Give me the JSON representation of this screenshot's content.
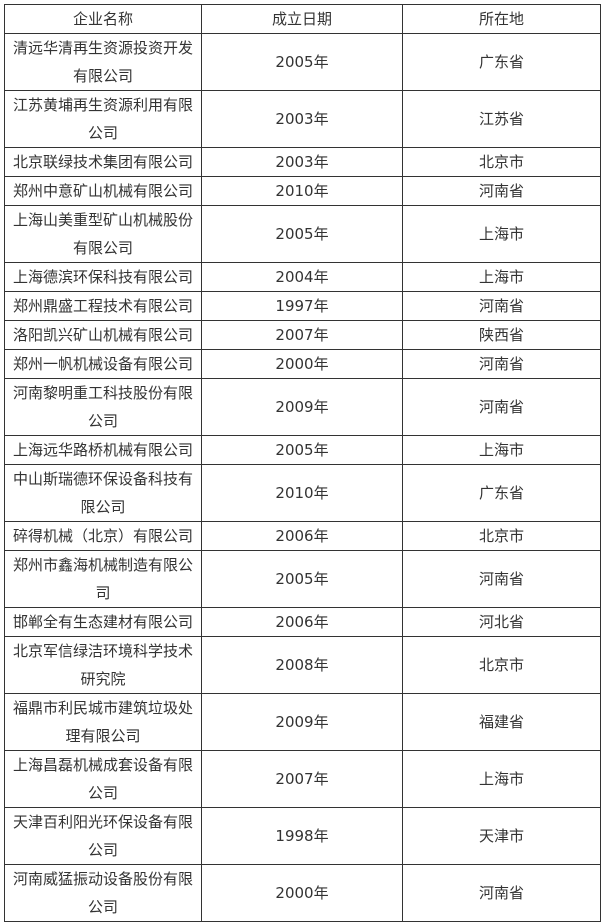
{
  "table": {
    "headers": [
      "企业名称",
      "成立日期",
      "所在地"
    ],
    "rows": [
      {
        "name": "清远华清再生资源投资开发有限公司",
        "year": "2005年",
        "location": "广东省"
      },
      {
        "name": "江苏黄埔再生资源利用有限公司",
        "year": "2003年",
        "location": "江苏省"
      },
      {
        "name": "北京联绿技术集团有限公司",
        "year": "2003年",
        "location": "北京市"
      },
      {
        "name": "郑州中意矿山机械有限公司",
        "year": "2010年",
        "location": "河南省"
      },
      {
        "name": "上海山美重型矿山机械股份有限公司",
        "year": "2005年",
        "location": "上海市"
      },
      {
        "name": "上海德滨环保科技有限公司",
        "year": "2004年",
        "location": "上海市"
      },
      {
        "name": "郑州鼎盛工程技术有限公司",
        "year": "1997年",
        "location": "河南省"
      },
      {
        "name": "洛阳凯兴矿山机械有限公司",
        "year": "2007年",
        "location": "陕西省"
      },
      {
        "name": "郑州一帆机械设备有限公司",
        "year": "2000年",
        "location": "河南省"
      },
      {
        "name": "河南黎明重工科技股份有限公司",
        "year": "2009年",
        "location": "河南省"
      },
      {
        "name": "上海远华路桥机械有限公司",
        "year": "2005年",
        "location": "上海市"
      },
      {
        "name": "中山斯瑞德环保设备科技有限公司",
        "year": "2010年",
        "location": "广东省"
      },
      {
        "name": "碎得机械（北京）有限公司",
        "year": "2006年",
        "location": "北京市"
      },
      {
        "name": "郑州市鑫海机械制造有限公司",
        "year": "2005年",
        "location": "河南省"
      },
      {
        "name": "邯郸全有生态建材有限公司",
        "year": "2006年",
        "location": "河北省"
      },
      {
        "name": "北京军信绿洁环境科学技术研究院",
        "year": "2008年",
        "location": "北京市"
      },
      {
        "name": "福鼎市利民城市建筑垃圾处理有限公司",
        "year": "2009年",
        "location": "福建省"
      },
      {
        "name": "上海昌磊机械成套设备有限公司",
        "year": "2007年",
        "location": "上海市"
      },
      {
        "name": "天津百利阳光环保设备有限公司",
        "year": "1998年",
        "location": "天津市"
      },
      {
        "name": "河南威猛振动设备股份有限公司",
        "year": "2000年",
        "location": "河南省"
      }
    ]
  }
}
